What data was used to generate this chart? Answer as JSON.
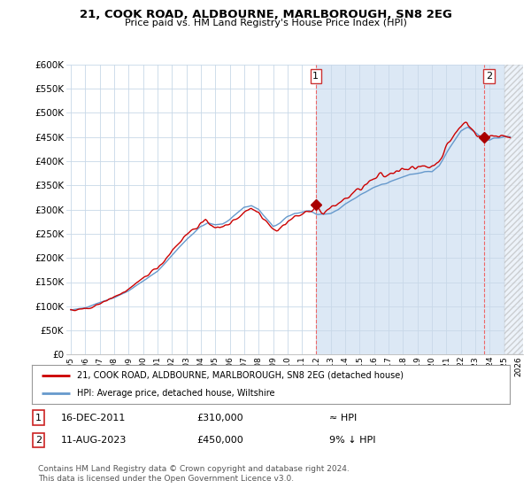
{
  "title": "21, COOK ROAD, ALDBOURNE, MARLBOROUGH, SN8 2EG",
  "subtitle": "Price paid vs. HM Land Registry's House Price Index (HPI)",
  "legend_line1": "21, COOK ROAD, ALDBOURNE, MARLBOROUGH, SN8 2EG (detached house)",
  "legend_line2": "HPI: Average price, detached house, Wiltshire",
  "annotation1_label": "1",
  "annotation1_date": "16-DEC-2011",
  "annotation1_price": "£310,000",
  "annotation1_hpi": "≈ HPI",
  "annotation2_label": "2",
  "annotation2_date": "11-AUG-2023",
  "annotation2_price": "£450,000",
  "annotation2_hpi": "9% ↓ HPI",
  "footer": "Contains HM Land Registry data © Crown copyright and database right 2024.\nThis data is licensed under the Open Government Licence v3.0.",
  "ylim": [
    0,
    600000
  ],
  "yticks": [
    0,
    50000,
    100000,
    150000,
    200000,
    250000,
    300000,
    350000,
    400000,
    450000,
    500000,
    550000,
    600000
  ],
  "ytick_labels": [
    "£0",
    "£50K",
    "£100K",
    "£150K",
    "£200K",
    "£250K",
    "£300K",
    "£350K",
    "£400K",
    "£450K",
    "£500K",
    "£550K",
    "£600K"
  ],
  "background_color": "#ffffff",
  "grid_color": "#c8d8e8",
  "fill_color": "#dce8f5",
  "line_color_red": "#cc0000",
  "line_color_blue": "#6699cc",
  "marker_color": "#aa0000",
  "marker1_x": 2011.958,
  "marker1_y": 310000,
  "marker2_x": 2023.625,
  "marker2_y": 450000,
  "xlim_start": 1994.7,
  "xlim_end": 2026.3,
  "xticks": [
    1995,
    1996,
    1997,
    1998,
    1999,
    2000,
    2001,
    2002,
    2003,
    2004,
    2005,
    2006,
    2007,
    2008,
    2009,
    2010,
    2011,
    2012,
    2013,
    2014,
    2015,
    2016,
    2017,
    2018,
    2019,
    2020,
    2021,
    2022,
    2023,
    2024,
    2025,
    2026
  ]
}
